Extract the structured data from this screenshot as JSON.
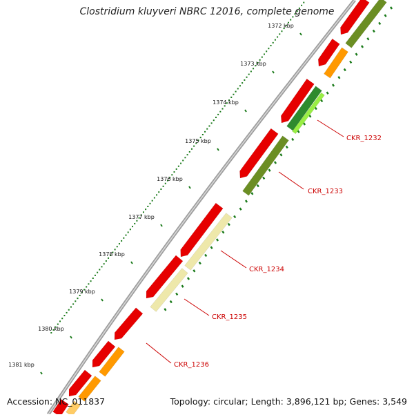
{
  "title": "Clostridium kluyveri NBRC 12016, complete genome",
  "footer": {
    "accession": "Accession: NC_011837",
    "stats": "Topology: circular; Length: 3,896,121 bp; Genes: 3,549"
  },
  "colors": {
    "backbone": "#8a8a8a",
    "forward_gene": "#e60000",
    "tick": "#1a7a1a",
    "label": "#cc0000",
    "olive": "#6b8e23",
    "orange": "#ff9900",
    "pale_yellow": "#eee8aa",
    "light_green": "#99ee44"
  },
  "scale_labels": [
    {
      "text": "1372 kbp",
      "pos": 1372
    },
    {
      "text": "1373 kbp",
      "pos": 1373
    },
    {
      "text": "1374 kbp",
      "pos": 1374
    },
    {
      "text": "1375 kbp",
      "pos": 1375
    },
    {
      "text": "1376 kbp",
      "pos": 1376
    },
    {
      "text": "1377 kbp",
      "pos": 1377
    },
    {
      "text": "1378 kbp",
      "pos": 1378
    },
    {
      "text": "1379 kbp",
      "pos": 1379
    },
    {
      "text": "1380 kbp",
      "pos": 1380
    },
    {
      "text": "1381 kbp",
      "pos": 1381
    }
  ],
  "gene_labels": [
    {
      "text": "CKR_1232"
    },
    {
      "text": "CKR_1233"
    },
    {
      "text": "CKR_1234"
    },
    {
      "text": "CKR_1235"
    },
    {
      "text": "CKR_1236"
    }
  ]
}
